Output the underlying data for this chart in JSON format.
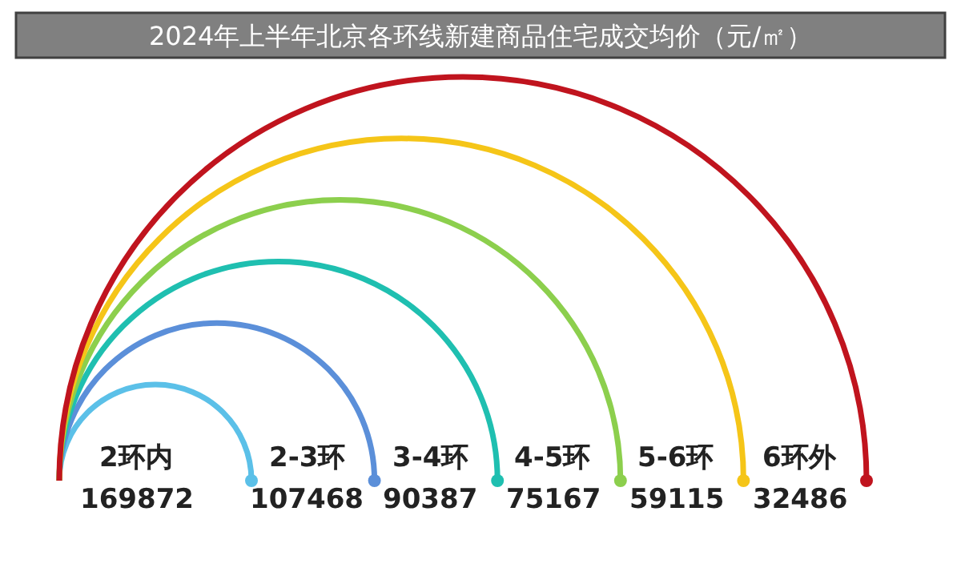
{
  "chart_data": {
    "type": "other",
    "title": "2024年上半年北京各环线新建商品住宅成交均价（元/㎡）",
    "categories": [
      "2环内",
      "2-3环",
      "3-4环",
      "4-5环",
      "5-6环",
      "6环外"
    ],
    "values": [
      169872,
      107468,
      90387,
      75167,
      59115,
      32486
    ],
    "colors": [
      "#5bc0e8",
      "#5b8fd9",
      "#1fbfb0",
      "#8ccf4d",
      "#f5c518",
      "#c0141e"
    ],
    "data_labels": true
  }
}
